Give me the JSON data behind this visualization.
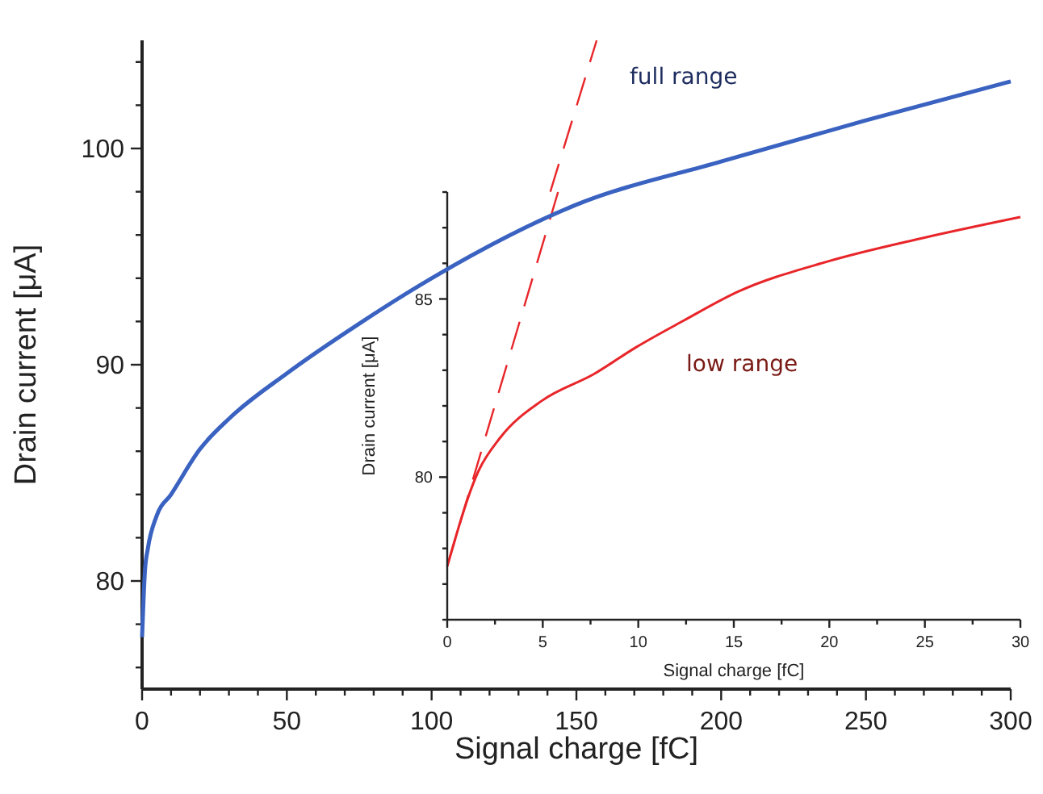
{
  "chart_data": [
    {
      "type": "line",
      "xlabel": "Signal charge [fC]",
      "ylabel": "Drain current [μA]",
      "xlim": [
        0,
        300
      ],
      "ylim": [
        75,
        105
      ],
      "xticks": [
        0,
        {
          "value": 10,
          "label": null
        },
        {
          "value": 20,
          "label": null
        },
        {
          "value": 30,
          "label": null
        },
        {
          "value": 40,
          "label": null
        },
        50,
        {
          "value": 60,
          "label": null
        },
        {
          "value": 70,
          "label": null
        },
        {
          "value": 80,
          "label": null
        },
        {
          "value": 90,
          "label": null
        },
        100,
        {
          "value": 110,
          "label": null
        },
        {
          "value": 120,
          "label": null
        },
        {
          "value": 130,
          "label": null
        },
        {
          "value": 140,
          "label": null
        },
        150,
        {
          "value": 160,
          "label": null
        },
        {
          "value": 170,
          "label": null
        },
        {
          "value": 180,
          "label": null
        },
        {
          "value": 190,
          "label": null
        },
        200,
        {
          "value": 210,
          "label": null
        },
        {
          "value": 220,
          "label": null
        },
        {
          "value": 230,
          "label": null
        },
        {
          "value": 240,
          "label": null
        },
        250,
        {
          "value": 260,
          "label": null
        },
        {
          "value": 270,
          "label": null
        },
        {
          "value": 280,
          "label": null
        },
        {
          "value": 290,
          "label": null
        },
        300
      ],
      "yticks": [
        {
          "value": 76,
          "label": null
        },
        {
          "value": 78,
          "label": null
        },
        80,
        {
          "value": 82,
          "label": null
        },
        {
          "value": 84,
          "label": null
        },
        {
          "value": 86,
          "label": null
        },
        {
          "value": 88,
          "label": null
        },
        90,
        {
          "value": 92,
          "label": null
        },
        {
          "value": 94,
          "label": null
        },
        {
          "value": 96,
          "label": null
        },
        {
          "value": 98,
          "label": null
        },
        100,
        {
          "value": 102,
          "label": null
        },
        {
          "value": 104,
          "label": null
        }
      ],
      "x": [
        0,
        1,
        2,
        5,
        10,
        20,
        30,
        50,
        75,
        100,
        150,
        200,
        250,
        300
      ],
      "series": [
        {
          "color": "#3a62c0",
          "values": [
            77.4,
            80.5,
            81.5,
            83.0,
            84.0,
            86.1,
            87.5,
            89.6,
            91.9,
            94.0,
            97.4,
            99.4,
            101.3,
            103.1
          ]
        },
        {
          "color": "#e8262a",
          "line_style": "dashed",
          "x": [
            141,
            157
          ],
          "values": [
            98,
            105
          ]
        }
      ],
      "annotations": [
        "full range"
      ]
    },
    {
      "type": "line",
      "xlabel": "Signal charge [fC]",
      "ylabel": "Drain current [μA]",
      "xlim": [
        0,
        30
      ],
      "ylim": [
        76,
        88
      ],
      "xticks": [
        0,
        {
          "value": 2.5,
          "label": null
        },
        5,
        {
          "value": 7.5,
          "label": null
        },
        10,
        {
          "value": 12.5,
          "label": null
        },
        15,
        {
          "value": 17.5,
          "label": null
        },
        20,
        {
          "value": 22.5,
          "label": null
        },
        25,
        {
          "value": 27.5,
          "label": null
        },
        30
      ],
      "yticks": [
        {
          "value": 76,
          "label": null
        },
        {
          "value": 77,
          "label": null
        },
        {
          "value": 78,
          "label": null
        },
        {
          "value": 79,
          "label": null
        },
        80,
        {
          "value": 81,
          "label": null
        },
        {
          "value": 82,
          "label": null
        },
        {
          "value": 83,
          "label": null
        },
        {
          "value": 84,
          "label": null
        },
        85,
        {
          "value": 86,
          "label": null
        },
        {
          "value": 87,
          "label": null
        },
        {
          "value": 88,
          "label": null
        }
      ],
      "x": [
        0,
        1.66,
        2.76,
        4.97,
        7.7,
        9.9,
        12.4,
        15.2,
        19.9,
        24.8,
        30
      ],
      "series": [
        {
          "color": "#e8262a",
          "values": [
            77.5,
            80.2,
            81.1,
            82.15,
            82.9,
            83.65,
            84.4,
            85.2,
            86.05,
            86.7,
            87.3
          ]
        },
        {
          "color": "#e8262a",
          "line_style": "dashed",
          "x": [
            0,
            5.8
          ],
          "values": [
            77.5,
            88
          ]
        }
      ],
      "annotations": [
        "low range"
      ]
    }
  ]
}
